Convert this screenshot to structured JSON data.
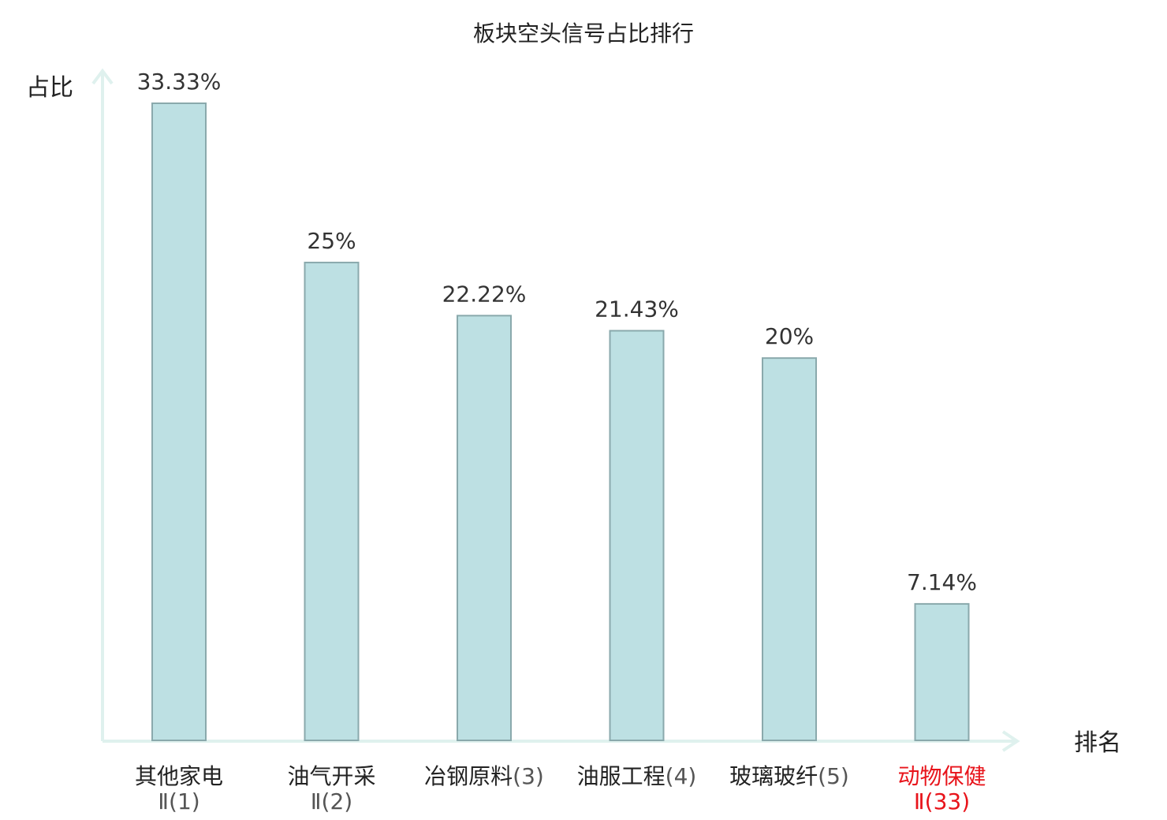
{
  "chart_data": {
    "type": "bar",
    "title": "板块空头信号占比排行",
    "ylabel": "占比",
    "xlabel": "排名",
    "categories": [
      {
        "name": "其他家电",
        "rank": "Ⅱ(1)",
        "highlight": false
      },
      {
        "name": "油气开采",
        "rank": "Ⅱ(2)",
        "highlight": false
      },
      {
        "name": "冶钢原料",
        "rank": "(3)",
        "highlight": false
      },
      {
        "name": "油服工程",
        "rank": "(4)",
        "highlight": false
      },
      {
        "name": "玻璃玻纤",
        "rank": "(5)",
        "highlight": false
      },
      {
        "name": "动物保健",
        "rank": "Ⅱ(33)",
        "highlight": true
      }
    ],
    "values": [
      33.33,
      25,
      22.22,
      21.43,
      20,
      7.14
    ],
    "value_labels": [
      "33.33%",
      "25%",
      "22.22%",
      "21.43%",
      "20%",
      "7.14%"
    ],
    "ylim": [
      0,
      33.33
    ],
    "grid": false,
    "colors": {
      "bar_fill": "#bde0e3",
      "bar_stroke": "#8aa9ac",
      "axis": "#dff1ee",
      "text": "#222222",
      "highlight": "#e8141b"
    }
  }
}
